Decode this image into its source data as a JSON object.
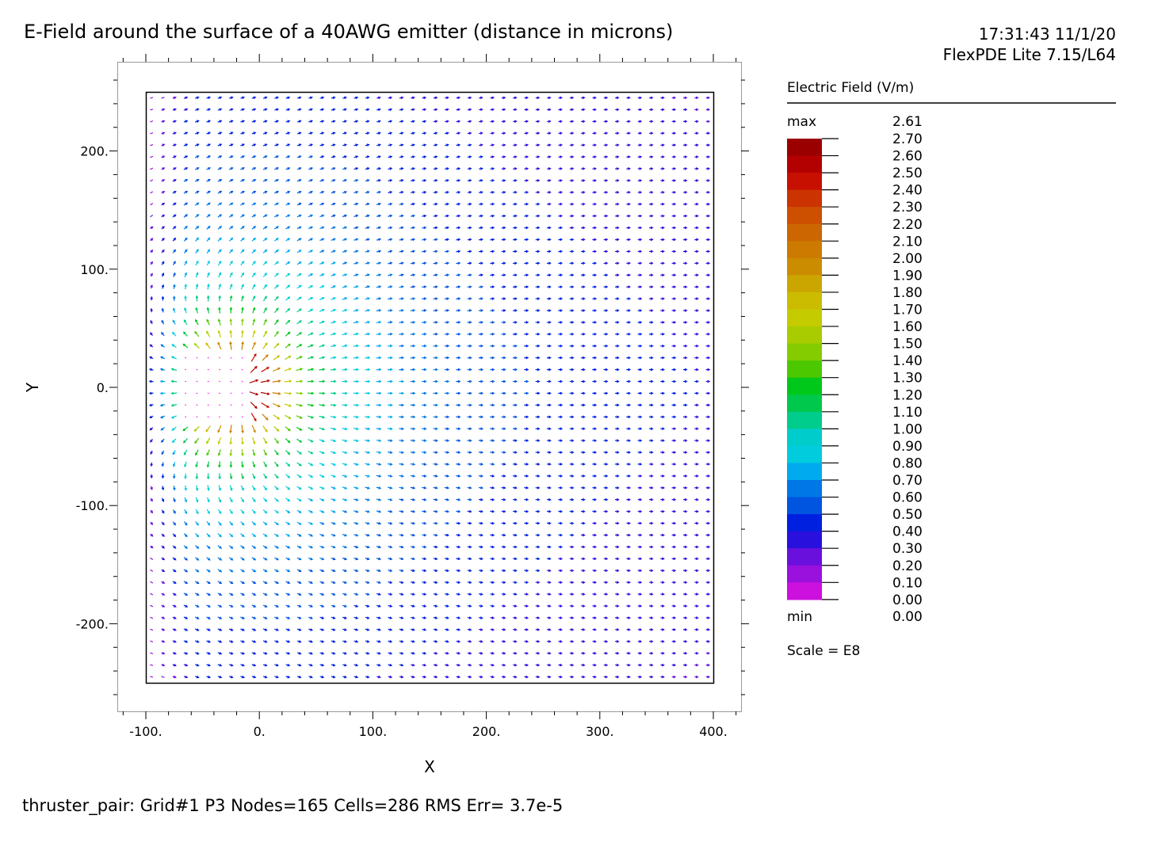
{
  "header": {
    "title": "E-Field around the surface of a 40AWG emitter (distance in microns)",
    "timestamp": "17:31:43 11/1/20",
    "software": "FlexPDE Lite 7.15/L64"
  },
  "footer": {
    "status": "thruster_pair:  Grid#1  P3  Nodes=165 Cells=286 RMS Err= 3.7e-5"
  },
  "chart_data": {
    "type": "vector-field",
    "title": "E-Field around the surface of a 40AWG emitter (distance in microns)",
    "xlabel": "X",
    "ylabel": "Y",
    "xlim": [
      -125,
      425
    ],
    "ylim": [
      -275,
      275
    ],
    "domain": {
      "x": [
        -100,
        400
      ],
      "y": [
        -250,
        250
      ]
    },
    "emitter": {
      "x": [
        -75,
        -10
      ],
      "y": [
        -35,
        35
      ]
    },
    "xticks": [
      {
        "value": -100,
        "label": "-100."
      },
      {
        "value": 0,
        "label": "0."
      },
      {
        "value": 100,
        "label": "100."
      },
      {
        "value": 200,
        "label": "200."
      },
      {
        "value": 300,
        "label": "300."
      },
      {
        "value": 400,
        "label": "400."
      }
    ],
    "yticks": [
      {
        "value": 200,
        "label": "200."
      },
      {
        "value": 100,
        "label": "100."
      },
      {
        "value": 0,
        "label": "0."
      },
      {
        "value": -100,
        "label": "-100."
      },
      {
        "value": -200,
        "label": "-200."
      }
    ],
    "legend": {
      "title": "Electric Field (V/m)",
      "max_label": "max",
      "max_value": "2.61",
      "min_label": "min",
      "min_value": "0.00",
      "scale": "Scale = E8",
      "levels": [
        "2.70",
        "2.60",
        "2.50",
        "2.40",
        "2.30",
        "2.20",
        "2.10",
        "2.00",
        "1.90",
        "1.80",
        "1.70",
        "1.60",
        "1.50",
        "1.40",
        "1.30",
        "1.20",
        "1.10",
        "1.00",
        "0.90",
        "0.80",
        "0.70",
        "0.60",
        "0.50",
        "0.40",
        "0.30",
        "0.20",
        "0.10",
        "0.00"
      ],
      "colors": [
        "#9b0000",
        "#b30000",
        "#c81000",
        "#cb3300",
        "#cc5000",
        "#cc6600",
        "#cc7a00",
        "#cc8c00",
        "#cca600",
        "#ccbc00",
        "#c4cc00",
        "#a8cc00",
        "#84cc00",
        "#4cc800",
        "#00c81a",
        "#00c84c",
        "#00cc8c",
        "#00cccc",
        "#00ccdd",
        "#00aaee",
        "#0077e6",
        "#0055e0",
        "#0020e0",
        "#2a10dd",
        "#6a10dd",
        "#9a10dd",
        "#cc10dd",
        "#ee10ee"
      ]
    }
  }
}
